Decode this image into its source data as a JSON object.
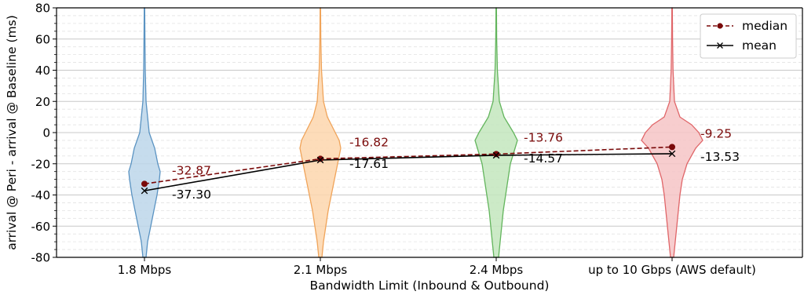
{
  "chart_data": {
    "type": "violin",
    "xlabel": "Bandwidth Limit (Inbound & Outbound)",
    "ylabel": "arrival @ Peri - arrival @ Baseline (ms)",
    "ylim": [
      -80,
      80
    ],
    "yticks": [
      -80,
      -60,
      -40,
      -20,
      0,
      20,
      40,
      60,
      80
    ],
    "grid": true,
    "legend_position": "top-right",
    "categories": [
      "1.8 Mbps",
      "2.1 Mbps",
      "2.4 Mbps",
      "up to 10 Gbps (AWS default)"
    ],
    "series": [
      {
        "name": "median",
        "style": "dashed",
        "marker": "circle",
        "color": "#7a0a0a",
        "values": [
          -32.87,
          -16.82,
          -13.76,
          -9.25
        ],
        "labels": [
          "-32.87",
          "-16.82",
          "-13.76",
          "-9.25"
        ]
      },
      {
        "name": "mean",
        "style": "solid",
        "marker": "x",
        "color": "#000000",
        "values": [
          -37.3,
          -17.61,
          -14.57,
          -13.53
        ],
        "labels": [
          "-37.30",
          "-17.61",
          "-14.57",
          "-13.53"
        ]
      }
    ],
    "violins": [
      {
        "fill": "#bcd6ea",
        "stroke": "#5a93c2",
        "profile": [
          [
            80,
            0.3
          ],
          [
            60,
            0.6
          ],
          [
            40,
            1
          ],
          [
            20,
            2
          ],
          [
            0,
            6
          ],
          [
            -10,
            13
          ],
          [
            -20,
            17
          ],
          [
            -25,
            20
          ],
          [
            -30,
            19
          ],
          [
            -40,
            16
          ],
          [
            -50,
            12
          ],
          [
            -60,
            8
          ],
          [
            -70,
            4
          ],
          [
            -80,
            2
          ]
        ]
      },
      {
        "fill": "#fdd6ad",
        "stroke": "#f0a45a",
        "profile": [
          [
            80,
            0.3
          ],
          [
            60,
            0.6
          ],
          [
            40,
            1.5
          ],
          [
            20,
            4
          ],
          [
            10,
            9
          ],
          [
            0,
            19
          ],
          [
            -5,
            24
          ],
          [
            -10,
            26
          ],
          [
            -20,
            22
          ],
          [
            -30,
            18
          ],
          [
            -40,
            14
          ],
          [
            -50,
            10
          ],
          [
            -60,
            7
          ],
          [
            -70,
            4
          ],
          [
            -80,
            2
          ]
        ]
      },
      {
        "fill": "#c3e6bd",
        "stroke": "#63b55d",
        "profile": [
          [
            80,
            0.3
          ],
          [
            60,
            0.6
          ],
          [
            40,
            1.5
          ],
          [
            20,
            4
          ],
          [
            10,
            10
          ],
          [
            0,
            22
          ],
          [
            -5,
            27
          ],
          [
            -10,
            24
          ],
          [
            -20,
            18
          ],
          [
            -30,
            15
          ],
          [
            -40,
            12
          ],
          [
            -50,
            9
          ],
          [
            -60,
            7
          ],
          [
            -70,
            5
          ],
          [
            -80,
            3
          ]
        ]
      },
      {
        "fill": "#f6c4c5",
        "stroke": "#e06669",
        "profile": [
          [
            80,
            0.3
          ],
          [
            60,
            0.6
          ],
          [
            40,
            1.2
          ],
          [
            20,
            3
          ],
          [
            10,
            10
          ],
          [
            5,
            25
          ],
          [
            0,
            34
          ],
          [
            -5,
            39
          ],
          [
            -10,
            30
          ],
          [
            -20,
            19
          ],
          [
            -30,
            13
          ],
          [
            -40,
            10
          ],
          [
            -50,
            8
          ],
          [
            -60,
            6
          ],
          [
            -70,
            4
          ],
          [
            -80,
            2
          ]
        ]
      }
    ]
  }
}
